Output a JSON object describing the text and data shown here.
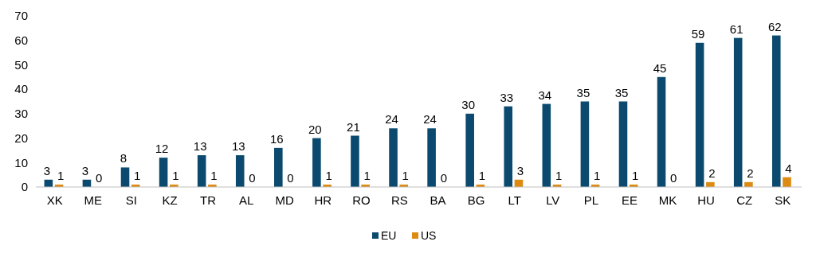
{
  "chart_data": {
    "type": "bar",
    "categories": [
      "XK",
      "ME",
      "SI",
      "KZ",
      "TR",
      "AL",
      "MD",
      "HR",
      "RO",
      "RS",
      "BA",
      "BG",
      "LT",
      "LV",
      "PL",
      "EE",
      "MK",
      "HU",
      "CZ",
      "SK"
    ],
    "series": [
      {
        "name": "EU",
        "color": "#0b4a6e",
        "values": [
          3,
          3,
          8,
          12,
          13,
          13,
          16,
          20,
          21,
          24,
          24,
          30,
          33,
          34,
          35,
          35,
          45,
          59,
          61,
          62
        ]
      },
      {
        "name": "US",
        "color": "#dd8a12",
        "values": [
          1,
          0,
          1,
          1,
          1,
          0,
          0,
          1,
          1,
          1,
          0,
          1,
          3,
          1,
          1,
          1,
          0,
          2,
          2,
          4
        ]
      }
    ],
    "ylim": [
      0,
      70
    ],
    "yticks": [
      0,
      10,
      20,
      30,
      40,
      50,
      60,
      70
    ],
    "data_labels": true,
    "legend": "bottom",
    "grid": false
  }
}
